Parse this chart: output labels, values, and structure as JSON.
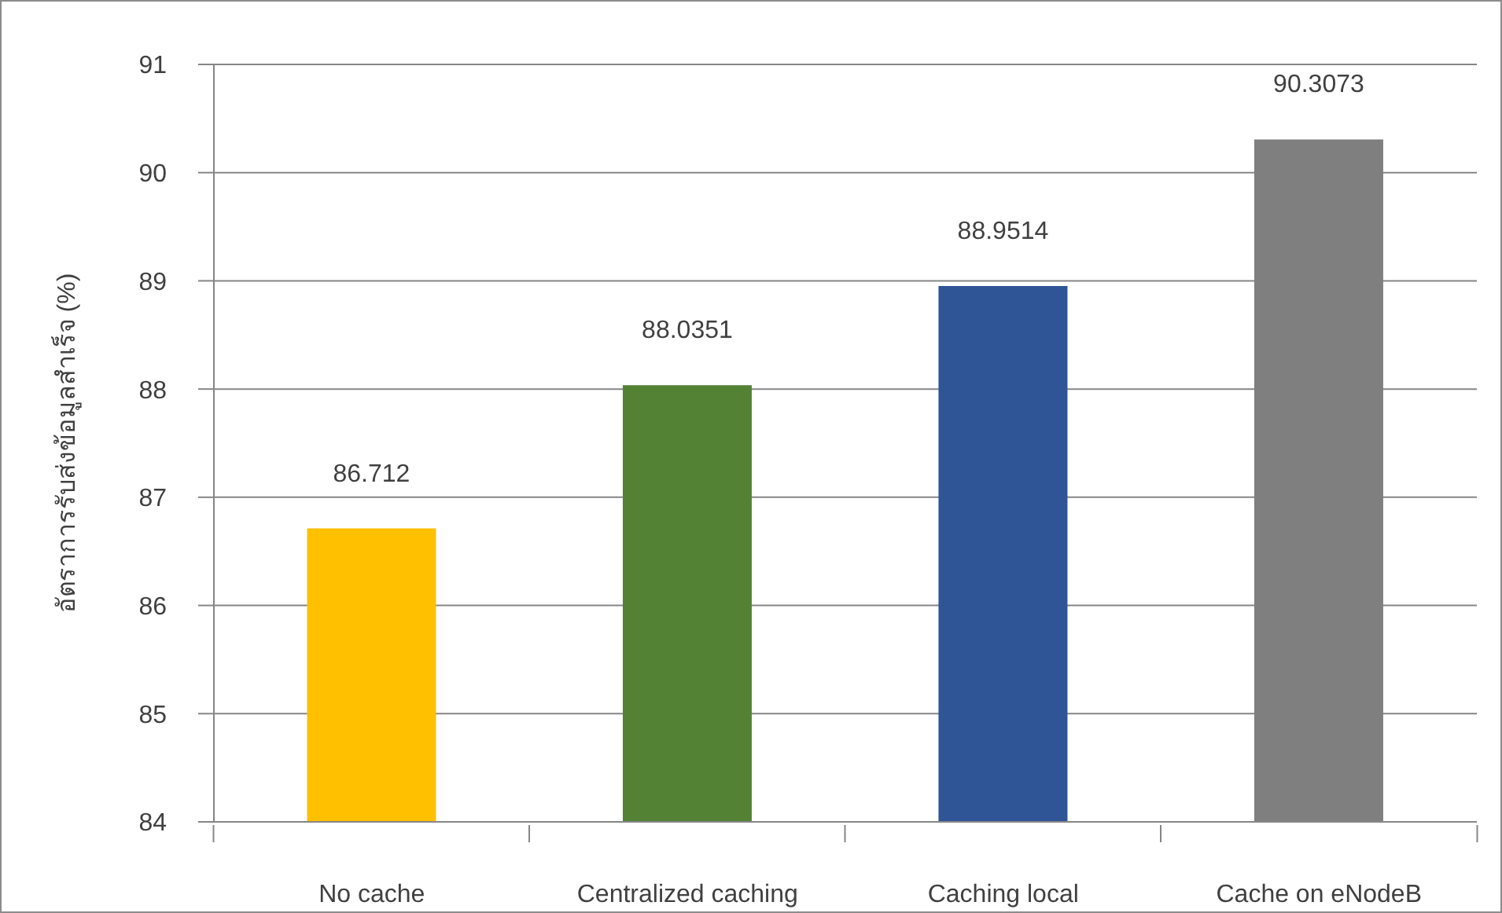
{
  "chart_data": {
    "type": "bar",
    "ylabel": "อัตราการรับส่งข้อมูลสำเร็จ (%)",
    "categories": [
      "No cache",
      "Centralized caching",
      "Caching local",
      "Cache on eNodeB"
    ],
    "values": [
      86.712,
      88.0351,
      88.9514,
      90.3073
    ],
    "colors": [
      "#ffc000",
      "#548235",
      "#2f5597",
      "#7f7f7f"
    ],
    "ylim": [
      84,
      91
    ],
    "yticks": [
      84,
      85,
      86,
      87,
      88,
      89,
      90,
      91
    ],
    "grid": "y",
    "data_labels": true
  }
}
